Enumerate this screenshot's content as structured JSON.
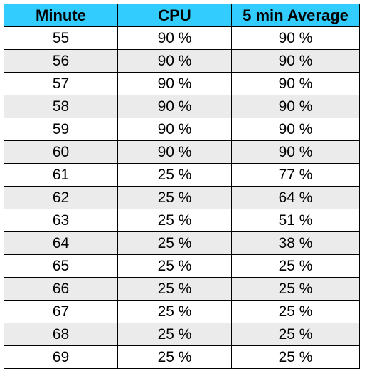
{
  "chart_data": {
    "type": "table",
    "columns": [
      "Minute",
      "CPU",
      "5 min Average"
    ],
    "rows": [
      [
        "55",
        "90 %",
        "90 %"
      ],
      [
        "56",
        "90 %",
        "90 %"
      ],
      [
        "57",
        "90 %",
        "90 %"
      ],
      [
        "58",
        "90 %",
        "90 %"
      ],
      [
        "59",
        "90 %",
        "90 %"
      ],
      [
        "60",
        "90 %",
        "90 %"
      ],
      [
        "61",
        "25 %",
        "77 %"
      ],
      [
        "62",
        "25 %",
        "64 %"
      ],
      [
        "63",
        "25 %",
        "51 %"
      ],
      [
        "64",
        "25 %",
        "38 %"
      ],
      [
        "65",
        "25 %",
        "25 %"
      ],
      [
        "66",
        "25 %",
        "25 %"
      ],
      [
        "67",
        "25 %",
        "25 %"
      ],
      [
        "68",
        "25 %",
        "25 %"
      ],
      [
        "69",
        "25 %",
        "25 %"
      ]
    ]
  },
  "colors": {
    "header_bg": "#33ccff",
    "stripe_bg": "#ebebeb",
    "row_bg": "#ffffff",
    "border": "#000000"
  }
}
